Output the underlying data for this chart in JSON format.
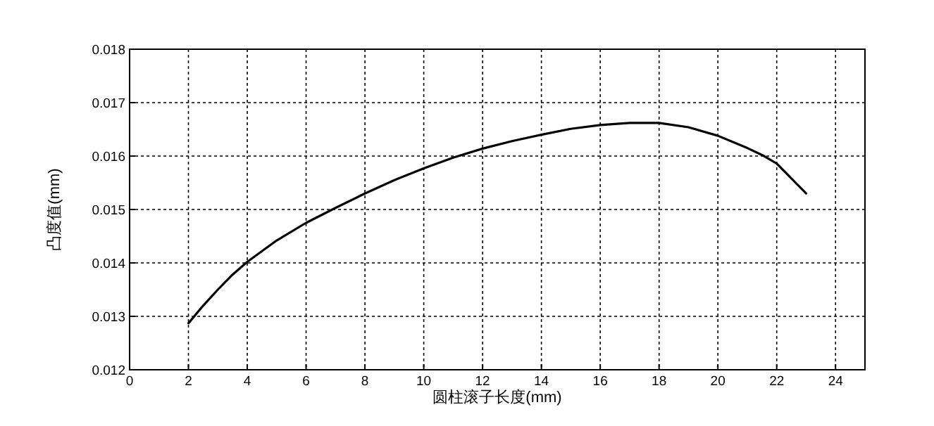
{
  "chart_data": {
    "type": "line",
    "xlabel": "圆柱滚子长度(mm)",
    "ylabel": "凸度值(mm)",
    "x": [
      2,
      2.5,
      3,
      3.5,
      4,
      5,
      6,
      7,
      8,
      9,
      10,
      11,
      12,
      13,
      14,
      15,
      16,
      17,
      18,
      19,
      20,
      21,
      21.5,
      22,
      22.5,
      23
    ],
    "series": [
      {
        "color": "#000000",
        "values": [
          0.01287,
          0.0132,
          0.0135,
          0.01378,
          0.01402,
          0.01442,
          0.01475,
          0.01503,
          0.0153,
          0.01555,
          0.01577,
          0.01597,
          0.01614,
          0.01628,
          0.0164,
          0.01651,
          0.01658,
          0.01662,
          0.01662,
          0.01654,
          0.01638,
          0.01615,
          0.01602,
          0.01586,
          0.01558,
          0.0153
        ]
      }
    ],
    "xlim": [
      0,
      25
    ],
    "xticks": [
      0,
      2,
      4,
      6,
      8,
      10,
      12,
      14,
      16,
      18,
      20,
      22,
      24
    ],
    "ylim": [
      0.012,
      0.018
    ],
    "yticks": [
      0.012,
      0.013,
      0.014,
      0.015,
      0.016,
      0.017,
      0.018
    ],
    "grid": true,
    "marker": "none",
    "line_style": "solid"
  }
}
